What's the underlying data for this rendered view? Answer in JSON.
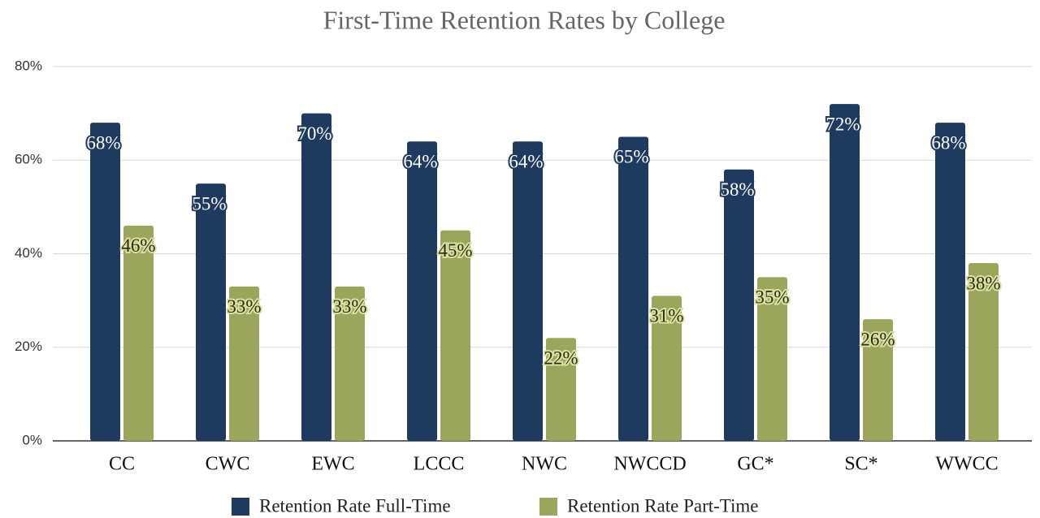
{
  "chart_data": {
    "type": "bar",
    "title": "First-Time Retention Rates by College",
    "categories": [
      "CC",
      "CWC",
      "EWC",
      "LCCC",
      "NWC",
      "NWCCD",
      "GC*",
      "SC*",
      "WWCC"
    ],
    "series": [
      {
        "name": "Retention Rate Full-Time",
        "color": "#1f3a5f",
        "values": [
          68,
          55,
          70,
          64,
          64,
          65,
          58,
          72,
          68
        ],
        "value_labels": [
          "68%",
          "55%",
          "70%",
          "64%",
          "64%",
          "65%",
          "58%",
          "72%",
          "68%"
        ]
      },
      {
        "name": "Retention Rate Part-Time",
        "color": "#9ba65c",
        "values": [
          46,
          33,
          33,
          45,
          22,
          31,
          35,
          26,
          38
        ],
        "value_labels": [
          "46%",
          "33%",
          "33%",
          "45%",
          "22%",
          "31%",
          "35%",
          "26%",
          "38%"
        ]
      }
    ],
    "ylim": [
      0,
      80
    ],
    "yticks": [
      {
        "value": 0,
        "label": "0%"
      },
      {
        "value": 20,
        "label": "20%"
      },
      {
        "value": 40,
        "label": "40%"
      },
      {
        "value": 60,
        "label": "60%"
      },
      {
        "value": 80,
        "label": "80%"
      }
    ],
    "grid": true,
    "legend": "bottom"
  }
}
